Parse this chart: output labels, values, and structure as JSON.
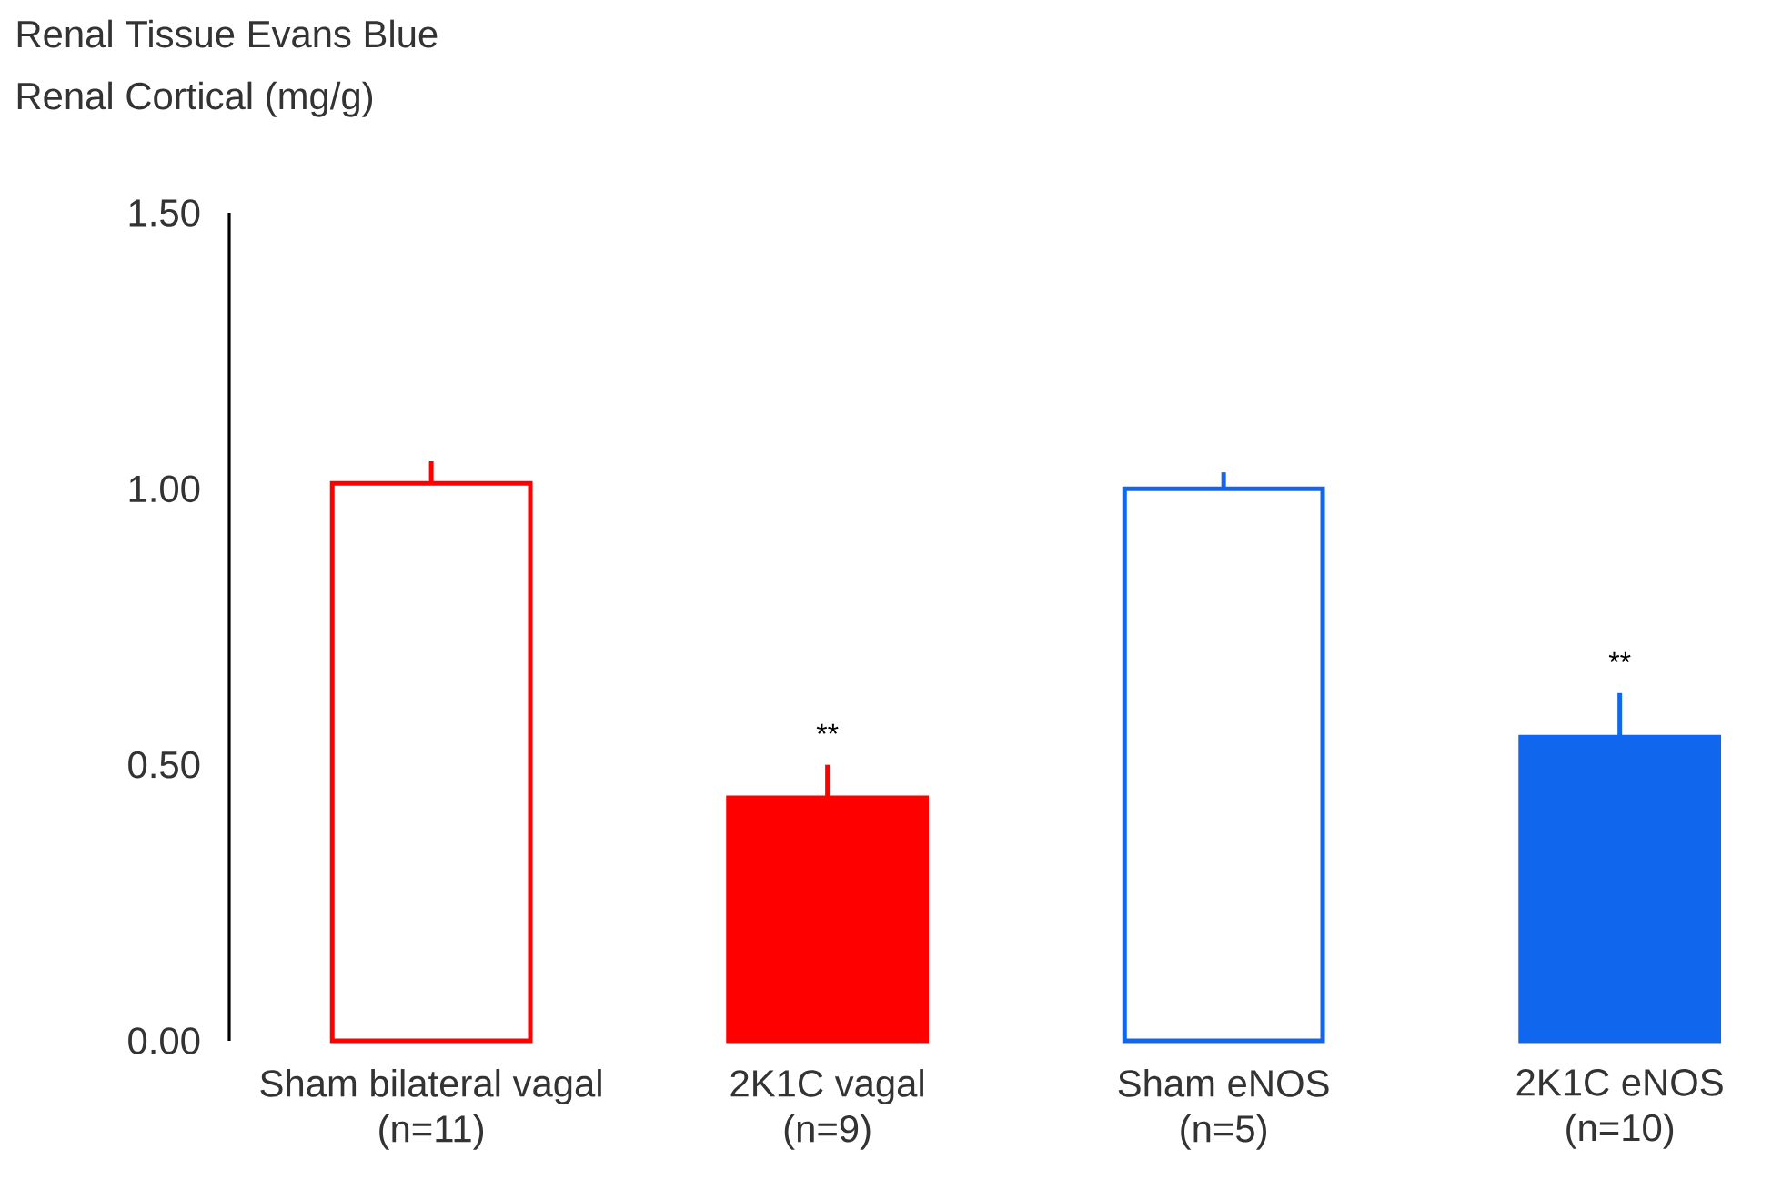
{
  "chart_data": {
    "type": "bar",
    "title": "Renal Tissue Evans Blue",
    "ylabel": "Renal Cortical (mg/g)",
    "categories": [
      "Sham bilateral vagal (n=11)",
      "2K1C vagal (n=9)",
      "Sham eNOS (n=5)",
      "2K1C eNOS (n=10)"
    ],
    "values": [
      1.01,
      0.44,
      1.0,
      0.55
    ],
    "errors": [
      [
        1.01,
        1.05
      ],
      [
        0.44,
        0.5
      ],
      [
        1.0,
        1.03
      ],
      [
        0.55,
        0.63
      ]
    ],
    "colors": [
      "#ffffff",
      "#ff0000",
      "#ffffff",
      "#1166ee"
    ],
    "ylim": [
      0,
      1.5
    ],
    "yticks": [
      {
        "value": 0,
        "label": "0.00"
      },
      {
        "value": 0.5,
        "label": "0.50"
      },
      {
        "value": 1.0,
        "label": "1.00"
      },
      {
        "value": 1.5,
        "label": "1.50"
      }
    ],
    "annotations": [
      "**",
      "**"
    ]
  }
}
